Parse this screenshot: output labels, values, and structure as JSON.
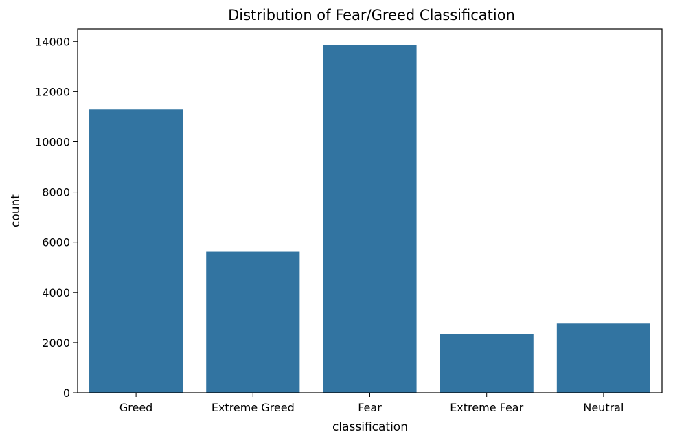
{
  "chart_data": {
    "type": "bar",
    "title": "Distribution of Fear/Greed Classification",
    "xlabel": "classification",
    "ylabel": "count",
    "categories": [
      "Greed",
      "Extreme Greed",
      "Fear",
      "Extreme Fear",
      "Neutral"
    ],
    "values": [
      11292,
      5621,
      13869,
      2326,
      2756
    ],
    "ylim": [
      0,
      14500
    ],
    "yticks": [
      0,
      2000,
      4000,
      6000,
      8000,
      10000,
      12000,
      14000
    ],
    "ytick_labels": [
      "0",
      "2000",
      "4000",
      "6000",
      "8000",
      "10000",
      "12000",
      "14000"
    ],
    "grid": false,
    "bar_color": "#3274a1"
  }
}
